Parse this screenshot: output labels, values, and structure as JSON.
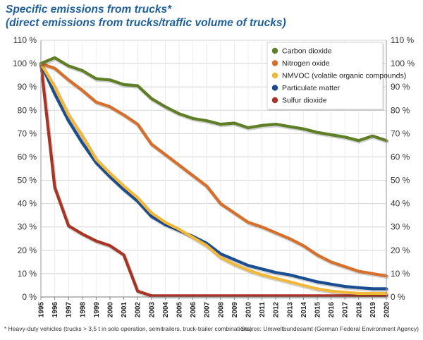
{
  "title_line1": "Specific emissions from trucks*",
  "title_line2": "(direct emissions from trucks/traffic volume of trucks)",
  "footnote": "* Heavy-duty vehicles (trucks > 3,5 t in solo operation, semitrailers, truck-trailer combinations)",
  "source": "Source: Umweltbundesamt (German Federal Environment Agency)",
  "chart_data": {
    "type": "line",
    "x": [
      1995,
      1996,
      1997,
      1998,
      1999,
      2000,
      2001,
      2002,
      2003,
      2004,
      2005,
      2006,
      2007,
      2008,
      2009,
      2010,
      2011,
      2012,
      2013,
      2014,
      2015,
      2016,
      2017,
      2018,
      2019,
      2020
    ],
    "ylim": [
      0,
      110
    ],
    "yticks": [
      0,
      10,
      20,
      30,
      40,
      50,
      60,
      70,
      80,
      90,
      100,
      110
    ],
    "ytick_labels": [
      "0 %",
      "10 %",
      "20 %",
      "30 %",
      "40 %",
      "50 %",
      "60 %",
      "70 %",
      "80 %",
      "90 %",
      "100 %",
      "110 %"
    ],
    "grid": true,
    "legend_position": "top-right",
    "series": [
      {
        "name": "Carbon dioxide",
        "color": "#5f7f26",
        "values": [
          100,
          102.5,
          99,
          97,
          93.5,
          93,
          91,
          90.5,
          85,
          81.5,
          78.5,
          76.5,
          75.5,
          74,
          74.5,
          72.5,
          73.5,
          74,
          73,
          72,
          70.5,
          69.5,
          68.5,
          67,
          69,
          67
        ]
      },
      {
        "name": "Nitrogen oxide",
        "color": "#d76f2c",
        "values": [
          100,
          98,
          93,
          88.5,
          83.5,
          81.5,
          78,
          74,
          65.5,
          61,
          56.5,
          52,
          47.5,
          40,
          36,
          32,
          30,
          27.5,
          25,
          22,
          18,
          15,
          13,
          11,
          10,
          9
        ]
      },
      {
        "name": "NMVOC (volatile organic compounds)",
        "color": "#f2b83b",
        "values": [
          100,
          90,
          78,
          69,
          59,
          53,
          47.5,
          42.5,
          36,
          32,
          29,
          25.5,
          22,
          17,
          14,
          11.5,
          9.5,
          8,
          6.5,
          5,
          3.5,
          2.5,
          2,
          1.5,
          1.5,
          1.5
        ]
      },
      {
        "name": "Particulate matter",
        "color": "#1a4e91",
        "values": [
          100,
          87,
          75.5,
          66,
          57.5,
          51.5,
          46,
          41,
          34.5,
          31,
          28.5,
          26,
          23,
          18.5,
          16,
          13.5,
          12,
          10.5,
          9.5,
          8,
          6.5,
          5.5,
          4.5,
          4,
          3.5,
          3.5
        ]
      },
      {
        "name": "Sulfur dioxide",
        "color": "#a63525",
        "values": [
          100,
          47,
          30.5,
          27,
          24,
          22,
          18,
          2.5,
          0.5,
          0.5,
          0.5,
          0.5,
          0.5,
          0.5,
          0.5,
          0.5,
          0.5,
          0.5,
          0.5,
          0.5,
          0.5,
          0.5,
          0.5,
          0.5,
          0.5,
          0.5
        ]
      }
    ]
  }
}
